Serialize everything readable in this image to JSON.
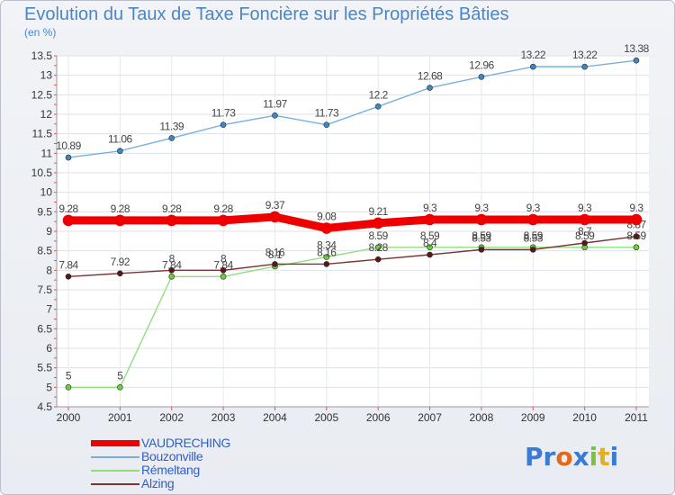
{
  "title": "Evolution du Taux de Taxe Foncière sur les Propriétés Bâties",
  "unit": "(en %)",
  "logo": {
    "text": [
      "P",
      "r",
      "o",
      "x",
      "i",
      "t",
      "i"
    ],
    "colors": [
      "#3a7bd5",
      "#3a7bd5",
      "#e06a1a",
      "#3a7bd5",
      "#7cc242",
      "#e0b21a",
      "#3a7bd5"
    ]
  },
  "chart_data": {
    "type": "line",
    "title": "Evolution du Taux de Taxe Foncière sur les Propriétés Bâties",
    "ylabel": "(en %)",
    "xlabel": "",
    "ylim": [
      4.5,
      13.5
    ],
    "yticks": [
      "4.5",
      "5",
      "5.5",
      "6",
      "6.5",
      "7",
      "7.5",
      "8",
      "8.5",
      "9",
      "9.5",
      "10",
      "10.5",
      "11",
      "11.5",
      "12",
      "12.5",
      "13",
      "13.5"
    ],
    "categories": [
      "2000",
      "2001",
      "2002",
      "2003",
      "2004",
      "2005",
      "2006",
      "2007",
      "2008",
      "2009",
      "2010",
      "2011"
    ],
    "series": [
      {
        "name": "VAUDRECHING",
        "color": "#ee0000",
        "marker": "#ee0000",
        "width": 7,
        "values": [
          9.28,
          9.28,
          9.28,
          9.28,
          9.37,
          9.08,
          9.21,
          9.3,
          9.3,
          9.3,
          9.3,
          9.3
        ],
        "labels": [
          "9.28",
          "9.28",
          "9.28",
          "9.28",
          "9.37",
          "9.08",
          "9.21",
          "9.3",
          "9.3",
          "9.3",
          "9.3",
          "9.3"
        ]
      },
      {
        "name": "Bouzonville",
        "color": "#7ab0dc",
        "marker": "#3f86c5",
        "width": 1,
        "values": [
          10.89,
          11.06,
          11.39,
          11.73,
          11.97,
          11.73,
          12.2,
          12.68,
          12.96,
          13.22,
          13.22,
          13.38
        ],
        "labels": [
          "10.89",
          "11.06",
          "11.39",
          "11.73",
          "11.97",
          "11.73",
          "12.2",
          "12.68",
          "12.96",
          "13.22",
          "13.22",
          "13.38"
        ]
      },
      {
        "name": "Rémeltang",
        "color": "#8fe07a",
        "marker": "#6ccf3c",
        "width": 1,
        "values": [
          5,
          5,
          7.84,
          7.84,
          8.1,
          8.34,
          8.59,
          8.59,
          8.59,
          8.59,
          8.59,
          8.59
        ],
        "labels": [
          "5",
          "5",
          "7.84",
          "7.84",
          "8.1",
          "8.34",
          "8.59",
          "8.59",
          "8.59",
          "8.59",
          "8.59",
          "8.59"
        ]
      },
      {
        "name": "Alzing",
        "color": "#7a3434",
        "marker": "#5a1818",
        "width": 1,
        "values": [
          7.84,
          7.92,
          8,
          8,
          8.16,
          8.16,
          8.28,
          8.4,
          8.53,
          8.53,
          8.7,
          8.87
        ],
        "labels": [
          "7.84",
          "7.92",
          "8",
          "8",
          "8.16",
          "8.16",
          "8.28",
          "8.4",
          "8.53",
          "8.53",
          "8.7",
          "8.87"
        ]
      }
    ]
  },
  "legend": [
    "VAUDRECHING",
    "Bouzonville",
    "Rémeltang",
    "Alzing"
  ]
}
